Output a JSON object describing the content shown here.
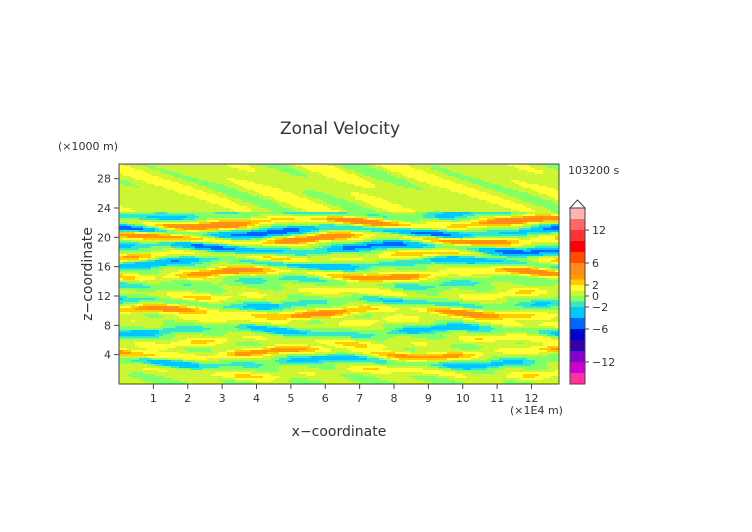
{
  "chart_data": {
    "type": "heatmap",
    "title": "Zonal Velocity",
    "xlabel": "x−coordinate",
    "ylabel": "z−coordinate",
    "x_unit": "(×1E4 m)",
    "y_unit": "(×1000 m)",
    "time_label": "103200 s",
    "xlim": [
      0,
      12.8
    ],
    "ylim": [
      0,
      30
    ],
    "x_ticks": [
      1,
      2,
      3,
      4,
      5,
      6,
      7,
      8,
      9,
      10,
      11,
      12
    ],
    "y_ticks": [
      4,
      8,
      12,
      16,
      20,
      24,
      28
    ],
    "grid": false,
    "colorbar": {
      "placement": "right",
      "tick_labels": [
        "12",
        "6",
        "2",
        "0",
        "−2",
        "−6",
        "−12"
      ],
      "tick_values": [
        12,
        6,
        2,
        0,
        -2,
        -6,
        -12
      ],
      "levels": [
        {
          "min": 14,
          "max": 16,
          "color": "#ffb3b3"
        },
        {
          "min": 12,
          "max": 14,
          "color": "#ff6666"
        },
        {
          "min": 10,
          "max": 12,
          "color": "#ff3333"
        },
        {
          "min": 8,
          "max": 10,
          "color": "#ff0000"
        },
        {
          "min": 6,
          "max": 8,
          "color": "#ff4d00"
        },
        {
          "min": 4,
          "max": 6,
          "color": "#ff8c1a"
        },
        {
          "min": 3,
          "max": 4,
          "color": "#ff9900"
        },
        {
          "min": 2,
          "max": 3,
          "color": "#ffcc00"
        },
        {
          "min": 1,
          "max": 2,
          "color": "#ffff33"
        },
        {
          "min": 0,
          "max": 1,
          "color": "#ccf533"
        },
        {
          "min": -1,
          "max": 0,
          "color": "#80ff66"
        },
        {
          "min": -2,
          "max": -1,
          "color": "#33e6cc"
        },
        {
          "min": -4,
          "max": -2,
          "color": "#00c8ff"
        },
        {
          "min": -6,
          "max": -4,
          "color": "#0066ff"
        },
        {
          "min": -8,
          "max": -6,
          "color": "#0000cc"
        },
        {
          "min": -10,
          "max": -8,
          "color": "#3300aa"
        },
        {
          "min": -12,
          "max": -10,
          "color": "#8800cc"
        },
        {
          "min": -14,
          "max": -12,
          "color": "#cc00cc"
        },
        {
          "min": -16,
          "max": -14,
          "color": "#ff3399"
        }
      ]
    },
    "bands": [
      {
        "z": 1.5,
        "amp": 2.0
      },
      {
        "z": 3.0,
        "amp": -3.0
      },
      {
        "z": 4.2,
        "amp": 4.0
      },
      {
        "z": 5.8,
        "amp": 2.0
      },
      {
        "z": 7.2,
        "amp": -3.0
      },
      {
        "z": 8.5,
        "amp": 1.5
      },
      {
        "z": 9.8,
        "amp": 4.5
      },
      {
        "z": 11.0,
        "amp": -2.5
      },
      {
        "z": 12.3,
        "amp": 2.0
      },
      {
        "z": 13.8,
        "amp": -1.5
      },
      {
        "z": 15.0,
        "amp": 4.5
      },
      {
        "z": 16.5,
        "amp": -4.0
      },
      {
        "z": 17.3,
        "amp": 3.0
      },
      {
        "z": 18.5,
        "amp": -5.0
      },
      {
        "z": 19.8,
        "amp": 5.0
      },
      {
        "z": 20.8,
        "amp": -5.5
      },
      {
        "z": 22.0,
        "amp": 5.5
      },
      {
        "z": 23.2,
        "amp": -2.5
      }
    ]
  }
}
